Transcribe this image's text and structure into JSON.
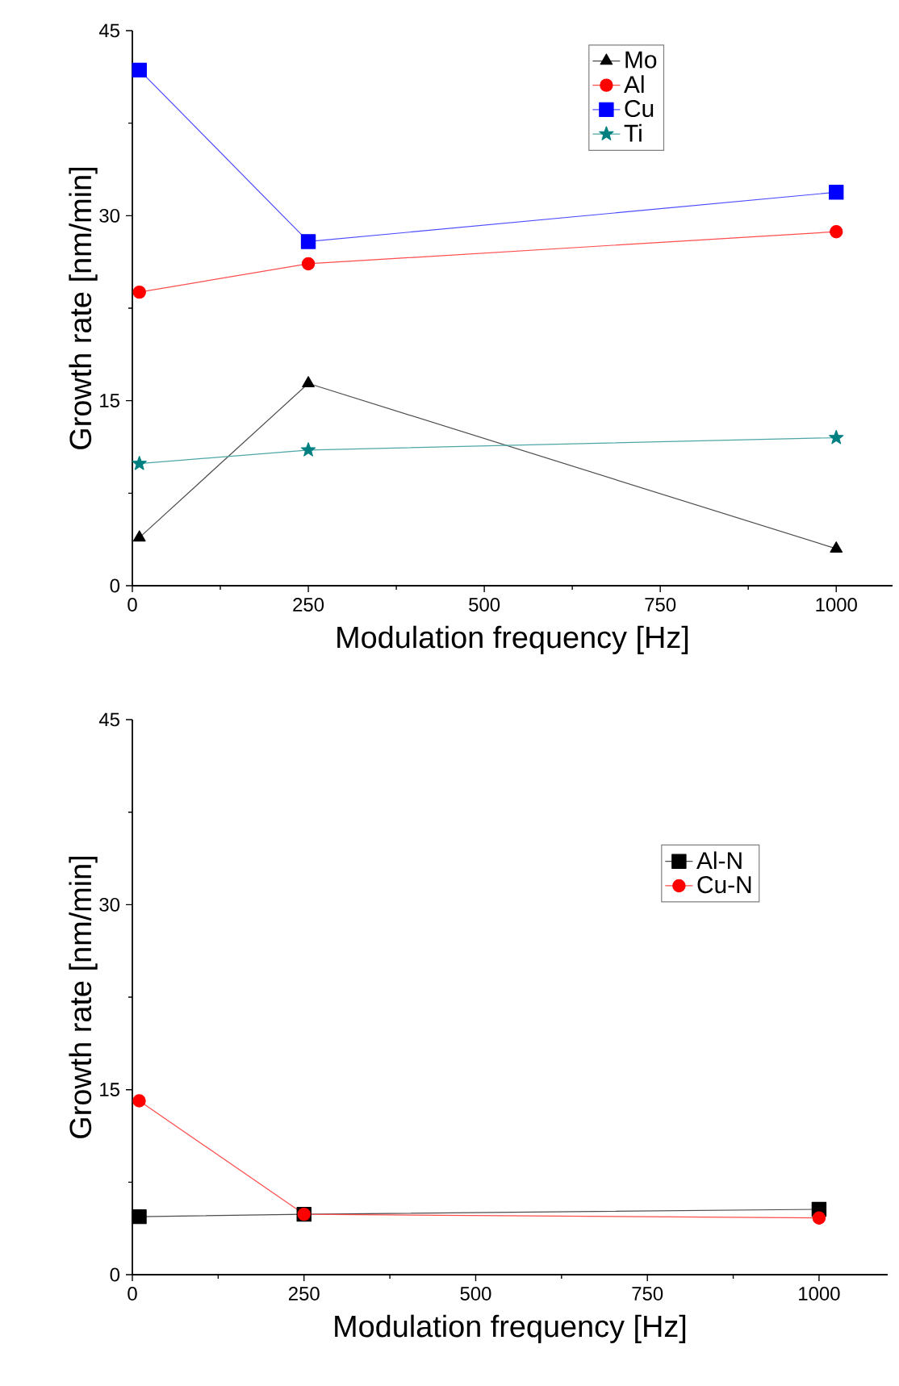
{
  "chart_data": [
    {
      "type": "line",
      "xlabel": "Modulation frequency [Hz]",
      "ylabel": "Growth rate [nm/min]",
      "x": [
        10,
        250,
        1000
      ],
      "xlim": [
        0,
        1080
      ],
      "ylim": [
        0,
        45
      ],
      "xticks": [
        0,
        250,
        500,
        750,
        1000
      ],
      "yticks": [
        0,
        15,
        30,
        45
      ],
      "legend": "top right",
      "line_style": "solid",
      "series": [
        {
          "name": "Mo",
          "color": "#000000",
          "marker": "triangle",
          "values": [
            3.9,
            16.4,
            3.0
          ]
        },
        {
          "name": "Al",
          "color": "#ff0000",
          "marker": "circle",
          "values": [
            23.8,
            26.1,
            28.7
          ]
        },
        {
          "name": "Cu",
          "color": "#0000ff",
          "marker": "square",
          "values": [
            41.8,
            27.9,
            31.9
          ]
        },
        {
          "name": "Ti",
          "color": "#008080",
          "marker": "star",
          "values": [
            9.9,
            11.0,
            12.0
          ]
        }
      ]
    },
    {
      "type": "line",
      "xlabel": "Modulation frequency [Hz]",
      "ylabel": "Growth rate [nm/min]",
      "x": [
        10,
        250,
        1000
      ],
      "xlim": [
        0,
        1100
      ],
      "ylim": [
        0,
        45
      ],
      "xticks": [
        0,
        250,
        500,
        750,
        1000
      ],
      "yticks": [
        0,
        15,
        30,
        45
      ],
      "legend": "top right",
      "line_style": "solid",
      "series": [
        {
          "name": "Al-N",
          "color": "#000000",
          "marker": "square",
          "values": [
            4.7,
            4.9,
            5.3
          ]
        },
        {
          "name": "Cu-N",
          "color": "#ff0000",
          "marker": "circle",
          "values": [
            14.1,
            4.9,
            4.6
          ]
        }
      ]
    }
  ]
}
